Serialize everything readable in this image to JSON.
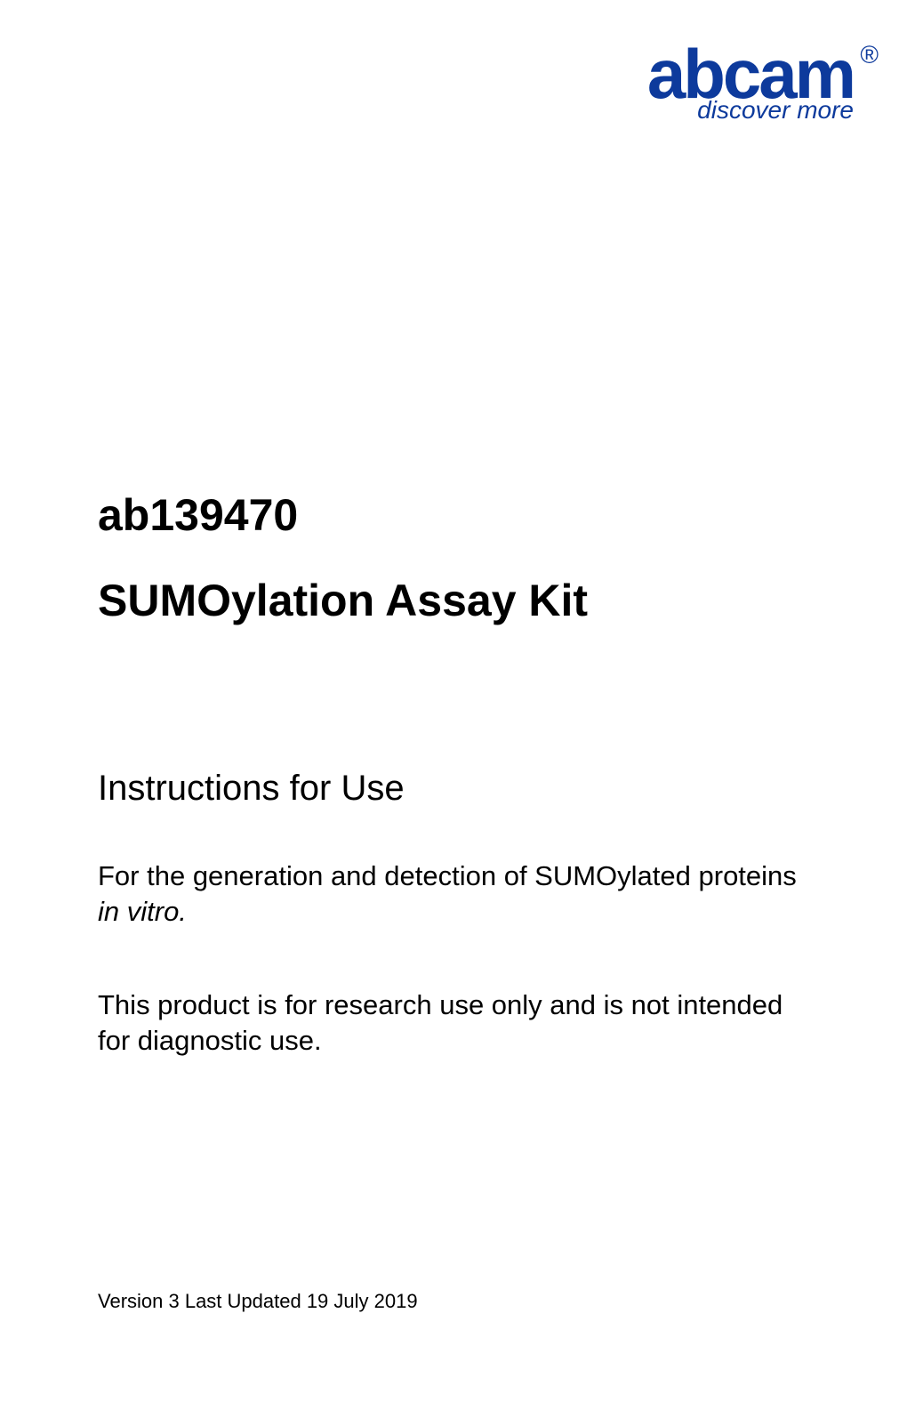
{
  "logo": {
    "brand_name": "abcam",
    "registered_symbol": "®",
    "tagline": "discover more",
    "brand_color": "#0d3a9c"
  },
  "product": {
    "code": "ab139470",
    "title": "SUMOylation Assay Kit"
  },
  "instructions": {
    "heading": "Instructions for Use",
    "description_prefix": "For the generation and detection of SUMOylated proteins ",
    "description_italic": "in vitro.",
    "disclaimer": "This product is for research use only and is not intended for diagnostic use."
  },
  "footer": {
    "version_text": "Version 3 Last Updated 19 July 2019"
  }
}
